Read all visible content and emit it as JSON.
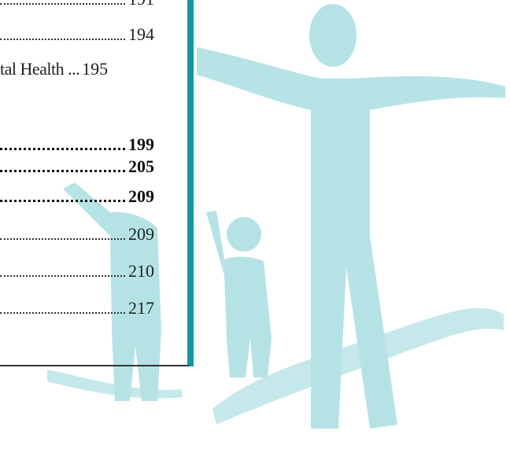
{
  "toc": {
    "entries": [
      {
        "page": 191,
        "bold": false
      },
      {
        "page": 194,
        "bold": false
      },
      {
        "label": "tal Health ...",
        "page": 195,
        "bold": false
      },
      {
        "page": 199,
        "bold": true
      },
      {
        "page": 205,
        "bold": true
      },
      {
        "page": 209,
        "bold": true
      },
      {
        "page": 209,
        "bold": false
      },
      {
        "page": 210,
        "bold": false
      },
      {
        "page": 217,
        "bold": false
      }
    ]
  }
}
